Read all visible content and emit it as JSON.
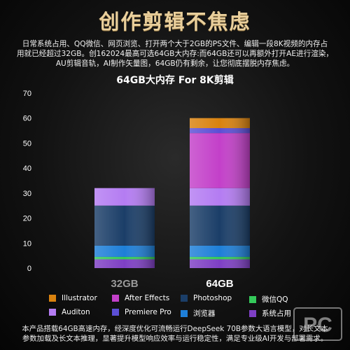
{
  "header": {
    "title": "创作剪辑不焦虑",
    "description": "日常系统占用、QQ微信、网页浏览、打开两个大于2GB的PS文件、编辑一段8K视频的内存占用就已经超过32GB。创162024最高可选64GB大内存:而64GB还可以再额外打开AE进行渲染，AU剪辑音轨，AI制作矢量图，64GB仍有剩余，让您彻底摆脱内存焦虑。",
    "description_lines": [
      "日常系统占用、QQ微信、网页浏览、打开两个大于2GB的PS文件、编辑一段8K视频的内存占",
      "用就已经超过32GB。创162024最高可选64GB大内存:而64GB还可以再额外打开AE进行渲染，",
      "AU剪辑音轨，AI制作矢量图，64GB仍有剩余，让您彻底摆脱内存焦虑。"
    ]
  },
  "footer": {
    "lines": [
      "本产品搭载64GB高速内存，经深度优化可流畅运行DeepSeek 70B参数大语言模型，对长文本",
      "参数加载及长文本推理，显著提升模型响应效率与运行稳定性，满足专业级AI开发与部署需求。"
    ]
  },
  "watermark": {
    "text": "PC",
    "icon": "pc-watermark-icon"
  },
  "chart_data": {
    "type": "bar",
    "stacked": true,
    "title": "64GB大内存 For 8K剪辑",
    "xlabel": "",
    "ylabel": "",
    "categories": [
      "32GB",
      "64GB"
    ],
    "ylim": [
      0,
      70
    ],
    "yticks": [
      0,
      10,
      20,
      30,
      40,
      50,
      60,
      70
    ],
    "grid": false,
    "legend_position": "bottom",
    "series": [
      {
        "name": "系统占用",
        "color": "#7e3fc4",
        "values": [
          3.5,
          3.5
        ]
      },
      {
        "name": "微信QQ",
        "color": "#34c95a",
        "values": [
          1,
          1
        ]
      },
      {
        "name": "浏览器",
        "color": "#1e7fd8",
        "values": [
          4.5,
          4.5
        ]
      },
      {
        "name": "Photoshop",
        "color": "#1b3e68",
        "values": [
          16,
          16
        ]
      },
      {
        "name": "Auditon",
        "color": "#b47cf2",
        "values": [
          7,
          7
        ]
      },
      {
        "name": "After Effects",
        "color": "#c340c9",
        "values": [
          0,
          22
        ]
      },
      {
        "name": "Premiere Pro",
        "color": "#5b4fd6",
        "values": [
          0,
          2
        ]
      },
      {
        "name": "Illustrator",
        "color": "#d9820f",
        "values": [
          0,
          4
        ]
      }
    ],
    "legend_order": [
      "Illustrator",
      "After Effects",
      "Photoshop",
      "微信QQ",
      "Auditon",
      "Premiere Pro",
      "浏览器",
      "系统占用"
    ]
  }
}
